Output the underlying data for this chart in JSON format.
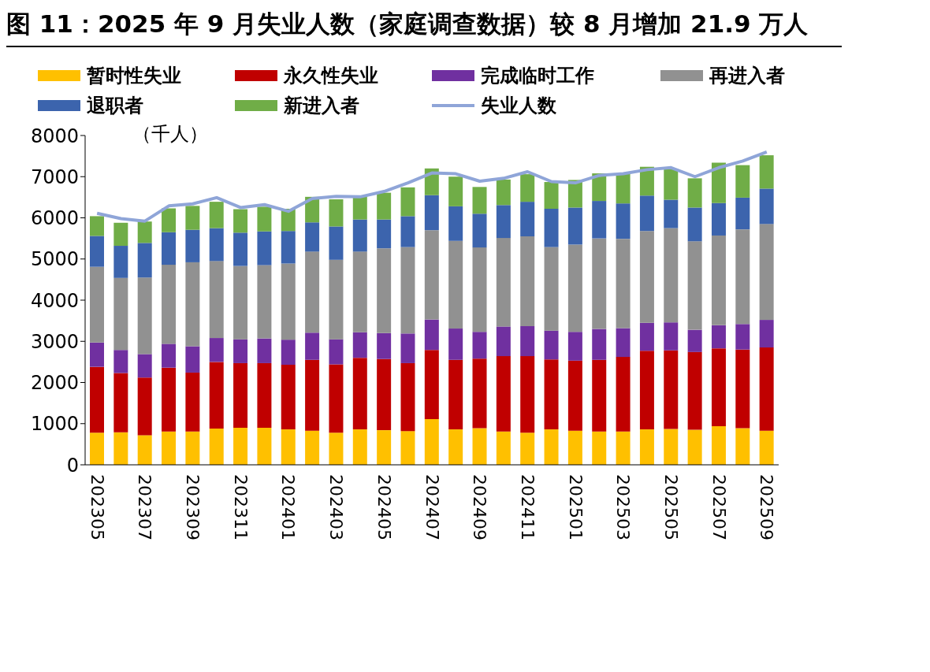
{
  "chart_data": {
    "type": "bar",
    "title": "图 11：2025 年 9 月失业人数（家庭调查数据）较 8 月增加 21.9 万人",
    "ylabel": "（千人）",
    "categories": [
      "202305",
      null,
      "202307",
      null,
      "202309",
      null,
      "202311",
      null,
      "202401",
      null,
      "202403",
      null,
      "202405",
      null,
      "202407",
      null,
      "202409",
      null,
      "202411",
      null,
      "202501",
      null,
      "202503",
      null,
      "202505",
      null,
      "202507",
      null,
      "202509"
    ],
    "stacked": true,
    "ylim": [
      0,
      8000
    ],
    "yticks": [
      0,
      1000,
      2000,
      3000,
      4000,
      5000,
      6000,
      7000,
      8000
    ],
    "grid": false,
    "legend": "top",
    "series": [
      {
        "name": "暂时性失业",
        "color": "#ffc000",
        "values": [
          780,
          790,
          720,
          810,
          810,
          880,
          900,
          900,
          860,
          830,
          780,
          860,
          840,
          820,
          1110,
          860,
          890,
          810,
          780,
          860,
          830,
          810,
          810,
          860,
          870,
          850,
          940,
          890,
          830
        ]
      },
      {
        "name": "永久性失业",
        "color": "#c00000",
        "values": [
          1600,
          1440,
          1400,
          1550,
          1430,
          1620,
          1570,
          1570,
          1570,
          1720,
          1660,
          1740,
          1730,
          1650,
          1680,
          1690,
          1690,
          1830,
          1860,
          1700,
          1700,
          1740,
          1810,
          1910,
          1910,
          1890,
          1890,
          1910,
          2020
        ]
      },
      {
        "name": "完成临时工作",
        "color": "#7030a0",
        "values": [
          590,
          560,
          570,
          580,
          640,
          580,
          580,
          600,
          610,
          660,
          610,
          620,
          630,
          720,
          740,
          760,
          650,
          720,
          730,
          700,
          700,
          750,
          700,
          680,
          680,
          540,
          560,
          620,
          670
        ]
      },
      {
        "name": "再进入者",
        "color": "#919191",
        "values": [
          1840,
          1750,
          1860,
          1920,
          2040,
          1870,
          1780,
          1780,
          1850,
          1970,
          1930,
          1960,
          2060,
          2100,
          2170,
          2130,
          2050,
          2150,
          2180,
          2030,
          2120,
          2200,
          2170,
          2230,
          2290,
          2150,
          2180,
          2300,
          2330
        ]
      },
      {
        "name": "退职者",
        "color": "#3c64ad",
        "values": [
          750,
          780,
          840,
          790,
          790,
          800,
          810,
          820,
          790,
          710,
          810,
          780,
          700,
          750,
          850,
          840,
          820,
          800,
          840,
          930,
          900,
          910,
          860,
          860,
          690,
          820,
          790,
          770,
          860
        ]
      },
      {
        "name": "新进入者",
        "color": "#70ad47",
        "values": [
          480,
          560,
          520,
          580,
          580,
          640,
          570,
          600,
          540,
          620,
          660,
          580,
          650,
          700,
          650,
          720,
          650,
          620,
          670,
          650,
          670,
          670,
          730,
          700,
          750,
          710,
          980,
          790,
          810
        ]
      },
      {
        "name": "失业人数",
        "type": "line",
        "color": "#8fa5d8",
        "marker": "none",
        "values": [
          6110,
          5980,
          5920,
          6290,
          6340,
          6490,
          6250,
          6320,
          6160,
          6470,
          6520,
          6510,
          6640,
          6850,
          7090,
          7070,
          6890,
          6960,
          7120,
          6880,
          6850,
          7030,
          7070,
          7170,
          7220,
          7000,
          7220,
          7380,
          7600
        ]
      }
    ]
  }
}
